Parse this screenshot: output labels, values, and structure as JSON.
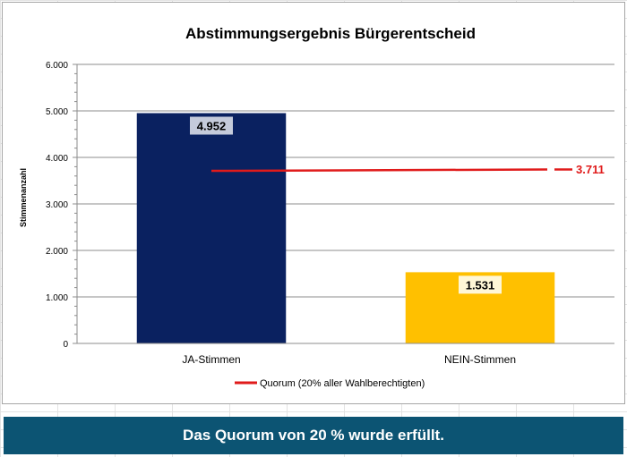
{
  "chart_data": {
    "type": "bar",
    "title": "Abstimmungsergebnis Bürgerentscheid",
    "xlabel": "",
    "ylabel": "Stimmenanzahl",
    "ylim": [
      0,
      6000
    ],
    "yticks": [
      0,
      1000,
      2000,
      3000,
      4000,
      5000,
      6000
    ],
    "ytick_labels": [
      "0",
      "1.000",
      "2.000",
      "3.000",
      "4.000",
      "5.000",
      "6.000"
    ],
    "grid": true,
    "categories": [
      "JA-Stimmen",
      "NEIN-Stimmen"
    ],
    "values": [
      4952,
      1531
    ],
    "value_labels": [
      "4.952",
      "1.531"
    ],
    "colors": [
      "#0a2160",
      "#ffc000"
    ],
    "reference_line": {
      "name": "Quorum (20% aller Wahlberechtigten)",
      "value": 3711,
      "value_label": "3.711",
      "color": "#e01b1b"
    },
    "legend_position": "bottom"
  },
  "banner": {
    "text": "Das Quorum von 20 % wurde erfüllt.",
    "background": "#0c5473"
  }
}
